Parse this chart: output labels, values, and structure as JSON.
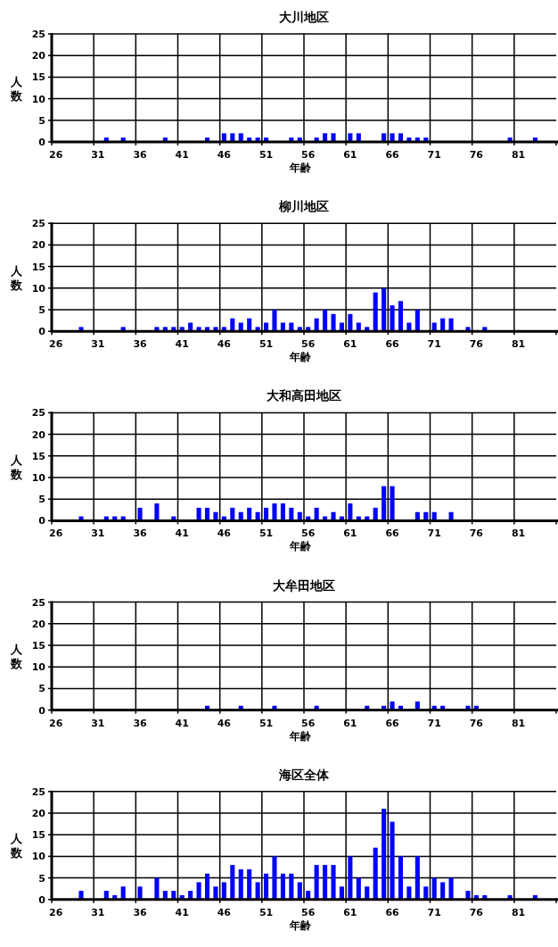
{
  "chart_data": [
    {
      "type": "bar",
      "title": "大川地区",
      "xlabel": "年齢",
      "ylabel": "人数",
      "ylim": [
        0,
        25
      ],
      "yticks": [
        0,
        5,
        10,
        15,
        20,
        25
      ],
      "grid": true,
      "color": "#0000ff",
      "categories": [
        "26",
        null,
        null,
        null,
        null,
        "31",
        null,
        null,
        null,
        null,
        "36",
        null,
        null,
        null,
        null,
        "41",
        null,
        null,
        null,
        null,
        "46",
        null,
        null,
        null,
        null,
        "51",
        null,
        null,
        null,
        null,
        "56",
        null,
        null,
        null,
        null,
        "61",
        null,
        null,
        null,
        null,
        "66",
        null,
        null,
        null,
        null,
        "71",
        null,
        null,
        null,
        null,
        "76",
        null,
        null,
        null,
        null,
        "81",
        null,
        null,
        null,
        null
      ],
      "values": [
        0,
        0,
        0,
        0,
        0,
        0,
        1,
        0,
        1,
        0,
        0,
        0,
        0,
        1,
        0,
        0,
        0,
        0,
        1,
        0,
        2,
        2,
        2,
        1,
        1,
        1,
        0,
        0,
        1,
        1,
        0,
        1,
        2,
        2,
        0,
        2,
        2,
        0,
        0,
        2,
        2,
        2,
        1,
        1,
        1,
        0,
        0,
        0,
        0,
        0,
        0,
        0,
        0,
        0,
        1,
        0,
        0,
        1,
        0,
        0
      ]
    },
    {
      "type": "bar",
      "title": "柳川地区",
      "xlabel": "年齢",
      "ylabel": "人数",
      "ylim": [
        0,
        25
      ],
      "yticks": [
        0,
        5,
        10,
        15,
        20,
        25
      ],
      "grid": true,
      "color": "#0000ff",
      "categories": [
        "26",
        null,
        null,
        null,
        null,
        "31",
        null,
        null,
        null,
        null,
        "36",
        null,
        null,
        null,
        null,
        "41",
        null,
        null,
        null,
        null,
        "46",
        null,
        null,
        null,
        null,
        "51",
        null,
        null,
        null,
        null,
        "56",
        null,
        null,
        null,
        null,
        "61",
        null,
        null,
        null,
        null,
        "66",
        null,
        null,
        null,
        null,
        "71",
        null,
        null,
        null,
        null,
        "76",
        null,
        null,
        null,
        null,
        "81",
        null,
        null,
        null,
        null
      ],
      "values": [
        0,
        0,
        0,
        1,
        0,
        0,
        0,
        0,
        1,
        0,
        0,
        0,
        1,
        1,
        1,
        1,
        2,
        1,
        1,
        1,
        1,
        3,
        2,
        3,
        1,
        2,
        5,
        2,
        2,
        1,
        1,
        3,
        5,
        4,
        2,
        4,
        2,
        1,
        9,
        10,
        6,
        7,
        2,
        5,
        0,
        2,
        3,
        3,
        0,
        1,
        0,
        1,
        0,
        0,
        0,
        0,
        0,
        0,
        0,
        0
      ]
    },
    {
      "type": "bar",
      "title": "大和高田地区",
      "xlabel": "年齢",
      "ylabel": "人数",
      "ylim": [
        0,
        25
      ],
      "yticks": [
        0,
        5,
        10,
        15,
        20,
        25
      ],
      "grid": true,
      "color": "#0000ff",
      "categories": [
        "26",
        null,
        null,
        null,
        null,
        "31",
        null,
        null,
        null,
        null,
        "36",
        null,
        null,
        null,
        null,
        "41",
        null,
        null,
        null,
        null,
        "46",
        null,
        null,
        null,
        null,
        "51",
        null,
        null,
        null,
        null,
        "56",
        null,
        null,
        null,
        null,
        "61",
        null,
        null,
        null,
        null,
        "66",
        null,
        null,
        null,
        null,
        "71",
        null,
        null,
        null,
        null,
        "76",
        null,
        null,
        null,
        null,
        "81",
        null,
        null,
        null,
        null
      ],
      "values": [
        0,
        0,
        0,
        1,
        0,
        0,
        1,
        1,
        1,
        0,
        3,
        0,
        4,
        0,
        1,
        0,
        0,
        3,
        3,
        2,
        1,
        3,
        2,
        3,
        2,
        3,
        4,
        4,
        3,
        2,
        1,
        3,
        1,
        2,
        1,
        4,
        1,
        1,
        3,
        8,
        8,
        0,
        0,
        2,
        2,
        2,
        0,
        2,
        0,
        0,
        0,
        0,
        0,
        0,
        0,
        0,
        0,
        0,
        0,
        0
      ]
    },
    {
      "type": "bar",
      "title": "大牟田地区",
      "xlabel": "年齢",
      "ylabel": "人数",
      "ylim": [
        0,
        25
      ],
      "yticks": [
        0,
        5,
        10,
        15,
        20,
        25
      ],
      "grid": true,
      "color": "#0000ff",
      "categories": [
        "26",
        null,
        null,
        null,
        null,
        "31",
        null,
        null,
        null,
        null,
        "36",
        null,
        null,
        null,
        null,
        "41",
        null,
        null,
        null,
        null,
        "46",
        null,
        null,
        null,
        null,
        "51",
        null,
        null,
        null,
        null,
        "56",
        null,
        null,
        null,
        null,
        "61",
        null,
        null,
        null,
        null,
        "66",
        null,
        null,
        null,
        null,
        "71",
        null,
        null,
        null,
        null,
        "76",
        null,
        null,
        null,
        null,
        "81",
        null,
        null,
        null,
        null
      ],
      "values": [
        0,
        0,
        0,
        0,
        0,
        0,
        0,
        0,
        0,
        0,
        0,
        0,
        0,
        0,
        0,
        0,
        0,
        0,
        1,
        0,
        0,
        0,
        1,
        0,
        0,
        0,
        1,
        0,
        0,
        0,
        0,
        1,
        0,
        0,
        0,
        0,
        0,
        1,
        0,
        1,
        2,
        1,
        0,
        2,
        0,
        1,
        1,
        0,
        0,
        1,
        1,
        0,
        0,
        0,
        0,
        0,
        0,
        0,
        0,
        0
      ]
    },
    {
      "type": "bar",
      "title": "海区全体",
      "xlabel": "年齢",
      "ylabel": "人数",
      "ylim": [
        0,
        25
      ],
      "yticks": [
        0,
        5,
        10,
        15,
        20,
        25
      ],
      "grid": true,
      "color": "#0000ff",
      "categories": [
        "26",
        null,
        null,
        null,
        null,
        "31",
        null,
        null,
        null,
        null,
        "36",
        null,
        null,
        null,
        null,
        "41",
        null,
        null,
        null,
        null,
        "46",
        null,
        null,
        null,
        null,
        "51",
        null,
        null,
        null,
        null,
        "56",
        null,
        null,
        null,
        null,
        "61",
        null,
        null,
        null,
        null,
        "66",
        null,
        null,
        null,
        null,
        "71",
        null,
        null,
        null,
        null,
        "76",
        null,
        null,
        null,
        null,
        "81",
        null,
        null,
        null,
        null
      ],
      "values": [
        0,
        0,
        0,
        2,
        0,
        0,
        2,
        1,
        3,
        0,
        3,
        0,
        5,
        2,
        2,
        1,
        2,
        4,
        6,
        3,
        4,
        8,
        7,
        7,
        4,
        6,
        10,
        6,
        6,
        4,
        2,
        8,
        8,
        8,
        3,
        10,
        5,
        3,
        12,
        21,
        18,
        10,
        3,
        10,
        3,
        5,
        4,
        5,
        0,
        2,
        1,
        1,
        0,
        0,
        1,
        0,
        0,
        1,
        0,
        0
      ]
    }
  ]
}
